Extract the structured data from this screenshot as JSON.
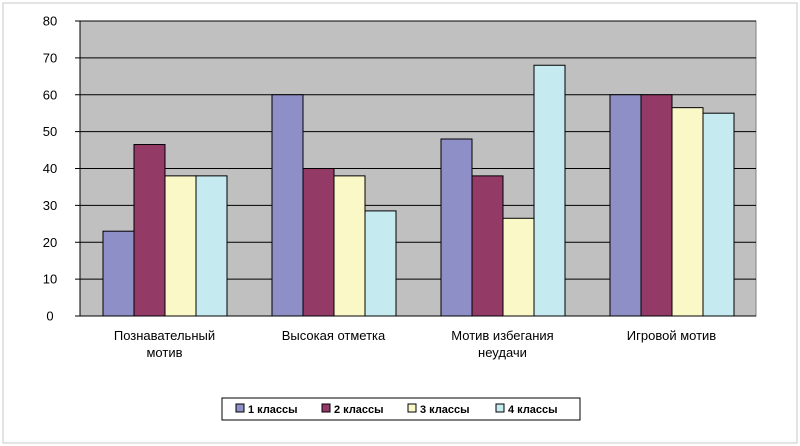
{
  "chart_data": {
    "type": "bar",
    "title": "",
    "xlabel": "",
    "ylabel": "",
    "ylim": [
      0,
      80
    ],
    "yticks": [
      0,
      10,
      20,
      30,
      40,
      50,
      60,
      70,
      80
    ],
    "grid": "horizontal",
    "legend_position": "bottom",
    "categories": [
      [
        "Познавательный",
        "мотив"
      ],
      [
        "Высокая отметка"
      ],
      [
        "Мотив избегания",
        "неудачи"
      ],
      [
        "Игровой мотив"
      ]
    ],
    "series": [
      {
        "name": "1 классы",
        "color": "#8f8fc8",
        "values": [
          23,
          60,
          48,
          60
        ]
      },
      {
        "name": "2 классы",
        "color": "#943a67",
        "values": [
          46.5,
          40,
          38,
          60
        ]
      },
      {
        "name": "3 классы",
        "color": "#fbf8c8",
        "values": [
          38,
          38,
          26.5,
          56.5
        ]
      },
      {
        "name": "4 классы",
        "color": "#c5eaf0",
        "values": [
          38,
          28.5,
          68,
          55
        ]
      }
    ],
    "colors": {
      "plot_background": "#c0c0c0",
      "gridline": "#000000",
      "frame": "#c9c9c9"
    }
  }
}
